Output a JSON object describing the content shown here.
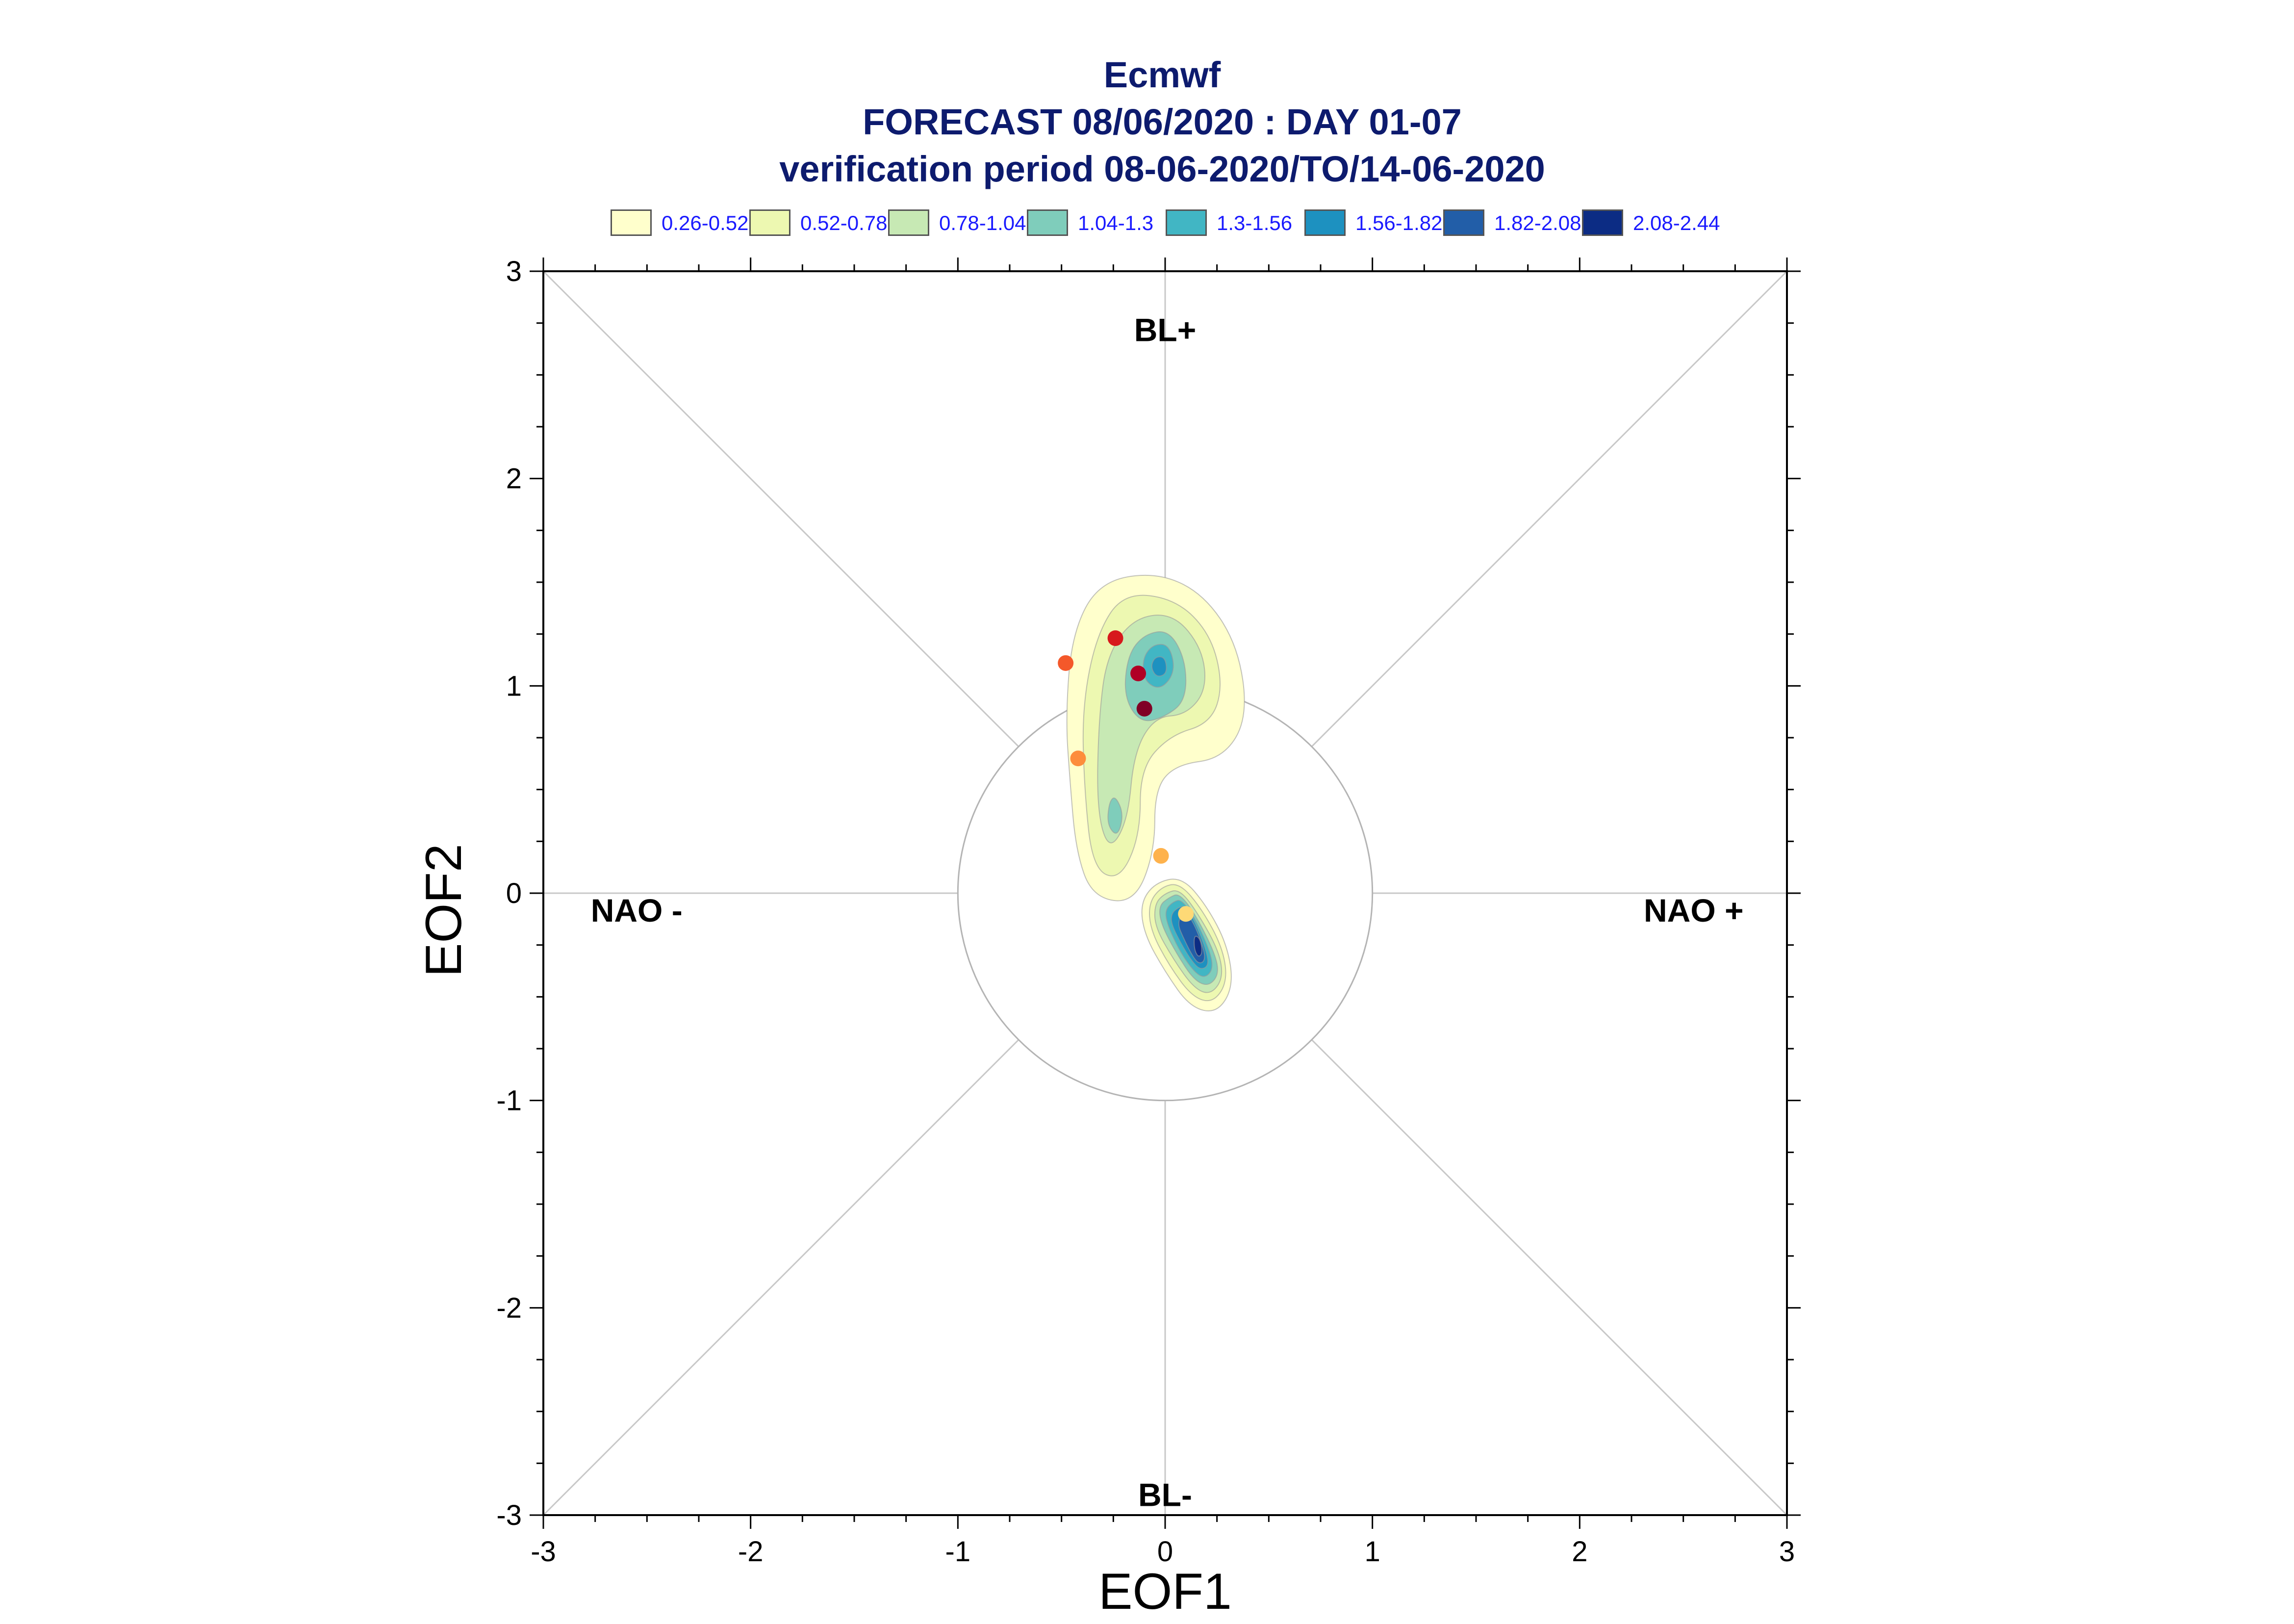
{
  "chart_data": {
    "type": "contour",
    "title_lines": [
      "Ecmwf",
      "FORECAST 08/06/2020 : DAY 01-07",
      "verification period 08-06-2020/TO/14-06-2020"
    ],
    "xlabel": "EOF1",
    "ylabel": "EOF2",
    "xlim": [
      -3,
      3
    ],
    "ylim": [
      -3,
      3
    ],
    "xticks": [
      "-3",
      "-2",
      "-1",
      "0",
      "1",
      "2",
      "3"
    ],
    "yticks": [
      "-3",
      "-2",
      "-1",
      "0",
      "1",
      "2",
      "3"
    ],
    "grid": false,
    "reference_circle_radius": 1,
    "regime_labels": [
      {
        "text": "BL+",
        "x": 0,
        "y": 2.72
      },
      {
        "text": "BL-",
        "x": 0,
        "y": -2.9
      },
      {
        "text": "NAO -",
        "x": -2.55,
        "y": -0.08
      },
      {
        "text": "NAO +",
        "x": 2.55,
        "y": -0.08
      }
    ],
    "legend": {
      "placement": "top",
      "levels": [
        {
          "label": "0.26-0.52",
          "color": "#ffffcc"
        },
        {
          "label": "0.52-0.78",
          "color": "#edf8b1"
        },
        {
          "label": "0.78-1.04",
          "color": "#c7e9b4"
        },
        {
          "label": "1.04-1.3",
          "color": "#7fcdbb"
        },
        {
          "label": "1.3-1.56",
          "color": "#41b6c4"
        },
        {
          "label": "1.56-1.82",
          "color": "#1d91c0"
        },
        {
          "label": "1.82-2.08",
          "color": "#225ea8"
        },
        {
          "label": "2.08-2.44",
          "color": "#0c2c84"
        }
      ]
    },
    "density_clusters": [
      {
        "name": "upper",
        "levels": [
          {
            "color": "#ffffcc",
            "points": [
              [
                -0.32,
                1.5
              ],
              [
                -0.05,
                1.55
              ],
              [
                0.18,
                1.45
              ],
              [
                0.35,
                1.2
              ],
              [
                0.4,
                0.85
              ],
              [
                0.28,
                0.65
              ],
              [
                0.05,
                0.62
              ],
              [
                -0.05,
                0.5
              ],
              [
                -0.05,
                0.2
              ],
              [
                -0.15,
                -0.05
              ],
              [
                -0.35,
                -0.02
              ],
              [
                -0.43,
                0.2
              ],
              [
                -0.46,
                0.55
              ],
              [
                -0.48,
                0.85
              ],
              [
                -0.45,
                1.25
              ]
            ]
          },
          {
            "color": "#edf8b1",
            "points": [
              [
                -0.2,
                1.45
              ],
              [
                0.05,
                1.42
              ],
              [
                0.22,
                1.25
              ],
              [
                0.28,
                1.0
              ],
              [
                0.22,
                0.82
              ],
              [
                0.02,
                0.76
              ],
              [
                -0.12,
                0.6
              ],
              [
                -0.12,
                0.28
              ],
              [
                -0.22,
                0.06
              ],
              [
                -0.35,
                0.12
              ],
              [
                -0.39,
                0.5
              ],
              [
                -0.4,
                0.9
              ],
              [
                -0.33,
                1.25
              ]
            ]
          },
          {
            "color": "#c7e9b4",
            "points": [
              [
                -0.15,
                1.33
              ],
              [
                0.04,
                1.35
              ],
              [
                0.18,
                1.18
              ],
              [
                0.2,
                0.98
              ],
              [
                0.1,
                0.86
              ],
              [
                -0.05,
                0.85
              ],
              [
                -0.15,
                0.68
              ],
              [
                -0.18,
                0.35
              ],
              [
                -0.27,
                0.2
              ],
              [
                -0.33,
                0.4
              ],
              [
                -0.32,
                0.85
              ],
              [
                -0.28,
                1.15
              ]
            ]
          },
          {
            "color": "#7fcdbb",
            "points": [
              [
                -0.1,
                1.25
              ],
              [
                0.02,
                1.27
              ],
              [
                0.1,
                1.12
              ],
              [
                0.1,
                0.93
              ],
              [
                0.0,
                0.85
              ],
              [
                -0.12,
                0.82
              ],
              [
                -0.2,
                0.95
              ],
              [
                -0.18,
                1.15
              ]
            ]
          },
          {
            "color": "#7fcdbb",
            "points": [
              [
                -0.24,
                0.47
              ],
              [
                -0.2,
                0.38
              ],
              [
                -0.23,
                0.27
              ],
              [
                -0.28,
                0.33
              ],
              [
                -0.27,
                0.44
              ]
            ]
          },
          {
            "color": "#41b6c4",
            "points": [
              [
                -0.06,
                1.2
              ],
              [
                0.02,
                1.2
              ],
              [
                0.05,
                1.07
              ],
              [
                -0.02,
                0.98
              ],
              [
                -0.1,
                1.02
              ],
              [
                -0.11,
                1.13
              ]
            ]
          },
          {
            "color": "#1d91c0",
            "points": [
              [
                -0.05,
                1.14
              ],
              [
                0.0,
                1.14
              ],
              [
                0.01,
                1.06
              ],
              [
                -0.04,
                1.04
              ],
              [
                -0.07,
                1.09
              ]
            ]
          }
        ]
      },
      {
        "name": "lower",
        "levels": [
          {
            "color": "#ffffcc",
            "points": [
              [
                -0.05,
                0.05
              ],
              [
                0.08,
                0.08
              ],
              [
                0.2,
                -0.06
              ],
              [
                0.3,
                -0.25
              ],
              [
                0.33,
                -0.45
              ],
              [
                0.25,
                -0.58
              ],
              [
                0.12,
                -0.55
              ],
              [
                0.0,
                -0.38
              ],
              [
                -0.1,
                -0.2
              ],
              [
                -0.12,
                -0.05
              ]
            ]
          },
          {
            "color": "#edf8b1",
            "points": [
              [
                -0.02,
                0.03
              ],
              [
                0.07,
                0.05
              ],
              [
                0.18,
                -0.08
              ],
              [
                0.28,
                -0.27
              ],
              [
                0.3,
                -0.43
              ],
              [
                0.23,
                -0.53
              ],
              [
                0.13,
                -0.5
              ],
              [
                0.02,
                -0.35
              ],
              [
                -0.07,
                -0.18
              ],
              [
                -0.08,
                -0.05
              ]
            ]
          },
          {
            "color": "#c7e9b4",
            "points": [
              [
                0.0,
                0.0
              ],
              [
                0.07,
                0.02
              ],
              [
                0.16,
                -0.1
              ],
              [
                0.26,
                -0.28
              ],
              [
                0.28,
                -0.41
              ],
              [
                0.22,
                -0.49
              ],
              [
                0.14,
                -0.46
              ],
              [
                0.04,
                -0.32
              ],
              [
                -0.05,
                -0.16
              ],
              [
                -0.05,
                -0.05
              ]
            ]
          },
          {
            "color": "#7fcdbb",
            "points": [
              [
                0.02,
                -0.02
              ],
              [
                0.07,
                0.0
              ],
              [
                0.15,
                -0.11
              ],
              [
                0.24,
                -0.29
              ],
              [
                0.26,
                -0.39
              ],
              [
                0.21,
                -0.45
              ],
              [
                0.14,
                -0.42
              ],
              [
                0.06,
                -0.3
              ],
              [
                -0.02,
                -0.15
              ],
              [
                -0.03,
                -0.06
              ]
            ]
          },
          {
            "color": "#41b6c4",
            "points": [
              [
                0.04,
                -0.04
              ],
              [
                0.08,
                -0.03
              ],
              [
                0.15,
                -0.13
              ],
              [
                0.22,
                -0.29
              ],
              [
                0.23,
                -0.37
              ],
              [
                0.19,
                -0.41
              ],
              [
                0.14,
                -0.38
              ],
              [
                0.07,
                -0.28
              ],
              [
                0.01,
                -0.15
              ],
              [
                0.0,
                -0.08
              ]
            ]
          },
          {
            "color": "#1d91c0",
            "points": [
              [
                0.06,
                -0.07
              ],
              [
                0.1,
                -0.06
              ],
              [
                0.15,
                -0.15
              ],
              [
                0.2,
                -0.28
              ],
              [
                0.21,
                -0.35
              ],
              [
                0.17,
                -0.37
              ],
              [
                0.13,
                -0.33
              ],
              [
                0.08,
                -0.25
              ],
              [
                0.03,
                -0.15
              ],
              [
                0.03,
                -0.1
              ]
            ]
          },
          {
            "color": "#225ea8",
            "points": [
              [
                0.08,
                -0.1
              ],
              [
                0.11,
                -0.1
              ],
              [
                0.15,
                -0.17
              ],
              [
                0.19,
                -0.28
              ],
              [
                0.19,
                -0.33
              ],
              [
                0.16,
                -0.34
              ],
              [
                0.13,
                -0.3
              ],
              [
                0.09,
                -0.22
              ],
              [
                0.06,
                -0.15
              ]
            ]
          },
          {
            "color": "#0c2c84",
            "points": [
              [
                0.14,
                -0.2
              ],
              [
                0.17,
                -0.22
              ],
              [
                0.18,
                -0.29
              ],
              [
                0.16,
                -0.31
              ],
              [
                0.14,
                -0.27
              ]
            ]
          }
        ]
      }
    ],
    "points": [
      {
        "x": -0.24,
        "y": 1.23,
        "color": "#d7191c"
      },
      {
        "x": -0.48,
        "y": 1.11,
        "color": "#f4582a"
      },
      {
        "x": -0.13,
        "y": 1.06,
        "color": "#b00026"
      },
      {
        "x": -0.1,
        "y": 0.89,
        "color": "#800026"
      },
      {
        "x": -0.42,
        "y": 0.65,
        "color": "#fd8d3c"
      },
      {
        "x": -0.02,
        "y": 0.18,
        "color": "#feb24c"
      },
      {
        "x": 0.1,
        "y": -0.1,
        "color": "#fed976"
      }
    ]
  }
}
